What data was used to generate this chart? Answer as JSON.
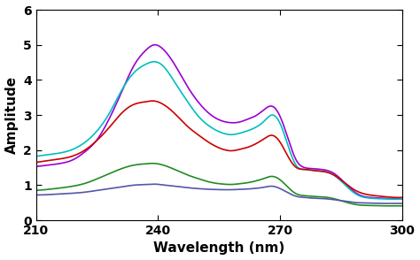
{
  "title": "",
  "xlabel": "Wavelength (nm)",
  "ylabel": "Amplitude",
  "xlim": [
    210,
    300
  ],
  "ylim": [
    0,
    6
  ],
  "xticks": [
    210,
    240,
    270,
    300
  ],
  "yticks": [
    0,
    1,
    2,
    3,
    4,
    5,
    6
  ],
  "background_color": "#ffffff",
  "curves": [
    {
      "color": "#9B00D3",
      "linewidth": 1.2,
      "keypoints_x": [
        210,
        213,
        216,
        219,
        222,
        225,
        228,
        231,
        234,
        237,
        239,
        241,
        244,
        247,
        250,
        253,
        256,
        258,
        260,
        262,
        264,
        266,
        268,
        270,
        272,
        274,
        276,
        278,
        280,
        283,
        286,
        289,
        292,
        295,
        298,
        300
      ],
      "keypoints_y": [
        1.53,
        1.57,
        1.62,
        1.72,
        1.95,
        2.3,
        2.9,
        3.65,
        4.4,
        4.85,
        5.0,
        4.9,
        4.45,
        3.85,
        3.35,
        3.0,
        2.82,
        2.78,
        2.8,
        2.88,
        2.98,
        3.15,
        3.25,
        2.95,
        2.3,
        1.7,
        1.5,
        1.47,
        1.45,
        1.35,
        1.05,
        0.75,
        0.65,
        0.63,
        0.61,
        0.6
      ]
    },
    {
      "color": "#00BFBF",
      "linewidth": 1.2,
      "keypoints_x": [
        210,
        213,
        216,
        219,
        222,
        225,
        228,
        231,
        234,
        237,
        239,
        241,
        244,
        247,
        250,
        253,
        256,
        258,
        260,
        262,
        264,
        266,
        268,
        270,
        272,
        274,
        276,
        278,
        280,
        283,
        286,
        289,
        292,
        295,
        298,
        300
      ],
      "keypoints_y": [
        1.82,
        1.87,
        1.92,
        2.02,
        2.22,
        2.55,
        3.05,
        3.7,
        4.2,
        4.45,
        4.52,
        4.42,
        3.95,
        3.42,
        2.95,
        2.65,
        2.48,
        2.44,
        2.48,
        2.55,
        2.65,
        2.82,
        3.0,
        2.75,
        2.1,
        1.55,
        1.45,
        1.42,
        1.4,
        1.3,
        1.0,
        0.72,
        0.63,
        0.61,
        0.6,
        0.6
      ]
    },
    {
      "color": "#CC0000",
      "linewidth": 1.2,
      "keypoints_x": [
        210,
        213,
        216,
        219,
        222,
        225,
        228,
        231,
        234,
        237,
        239,
        241,
        244,
        247,
        250,
        253,
        256,
        258,
        260,
        262,
        264,
        266,
        268,
        270,
        272,
        274,
        276,
        278,
        280,
        283,
        286,
        289,
        292,
        295,
        298,
        300
      ],
      "keypoints_y": [
        1.65,
        1.7,
        1.75,
        1.83,
        2.0,
        2.28,
        2.65,
        3.05,
        3.3,
        3.38,
        3.4,
        3.32,
        3.05,
        2.7,
        2.42,
        2.18,
        2.02,
        1.98,
        2.02,
        2.08,
        2.18,
        2.32,
        2.42,
        2.22,
        1.8,
        1.5,
        1.45,
        1.42,
        1.4,
        1.3,
        1.05,
        0.82,
        0.72,
        0.68,
        0.65,
        0.65
      ]
    },
    {
      "color": "#228B22",
      "linewidth": 1.2,
      "keypoints_x": [
        210,
        213,
        216,
        219,
        222,
        225,
        228,
        231,
        234,
        237,
        239,
        241,
        244,
        247,
        250,
        253,
        256,
        258,
        260,
        262,
        264,
        266,
        268,
        270,
        272,
        274,
        276,
        278,
        280,
        283,
        286,
        289,
        292,
        295,
        298,
        300
      ],
      "keypoints_y": [
        0.85,
        0.88,
        0.92,
        0.97,
        1.05,
        1.18,
        1.33,
        1.47,
        1.57,
        1.61,
        1.62,
        1.58,
        1.45,
        1.3,
        1.18,
        1.08,
        1.03,
        1.02,
        1.04,
        1.07,
        1.12,
        1.19,
        1.25,
        1.15,
        0.93,
        0.75,
        0.7,
        0.68,
        0.67,
        0.62,
        0.52,
        0.44,
        0.42,
        0.41,
        0.41,
        0.41
      ]
    },
    {
      "color": "#5555AA",
      "linewidth": 1.2,
      "keypoints_x": [
        210,
        213,
        216,
        219,
        222,
        225,
        228,
        231,
        234,
        237,
        239,
        241,
        244,
        247,
        250,
        253,
        256,
        258,
        260,
        262,
        264,
        266,
        268,
        270,
        272,
        274,
        276,
        278,
        280,
        283,
        286,
        289,
        292,
        295,
        298,
        300
      ],
      "keypoints_y": [
        0.72,
        0.73,
        0.75,
        0.77,
        0.8,
        0.85,
        0.9,
        0.95,
        1.0,
        1.02,
        1.03,
        1.01,
        0.97,
        0.93,
        0.9,
        0.88,
        0.87,
        0.87,
        0.88,
        0.89,
        0.91,
        0.94,
        0.97,
        0.9,
        0.78,
        0.68,
        0.65,
        0.63,
        0.62,
        0.59,
        0.54,
        0.5,
        0.49,
        0.48,
        0.48,
        0.48
      ]
    }
  ]
}
